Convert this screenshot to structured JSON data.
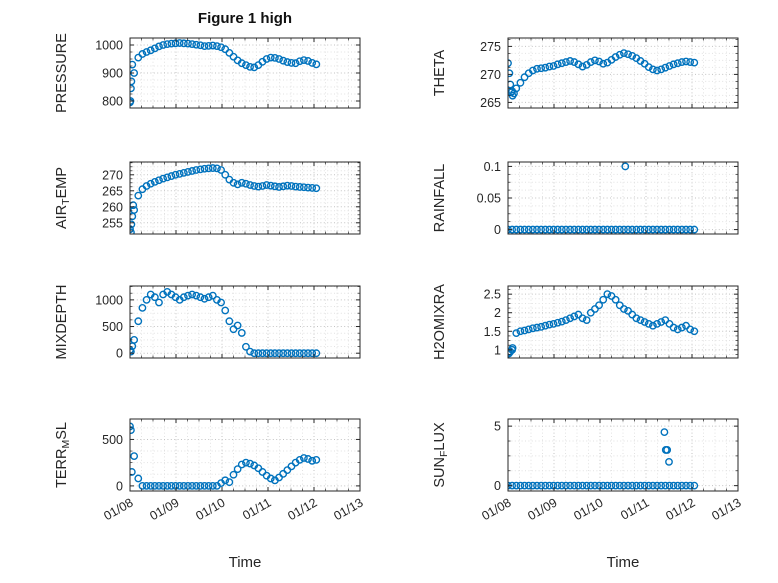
{
  "chart_data": {
    "type": "scatter",
    "title": "Figure 1 high",
    "xlabel": "Time",
    "marker": "open-circle",
    "marker_color": "#0072BD",
    "grid": "on-dotted-minor",
    "xlim": [
      8,
      13
    ],
    "xticks": [
      8,
      9,
      10,
      11,
      12,
      13
    ],
    "xtick_labels": [
      "01/08",
      "01/09",
      "01/10",
      "01/11",
      "01/12",
      "01/13"
    ],
    "x": [
      8.0,
      8.09,
      8.18,
      8.27,
      8.36,
      8.45,
      8.54,
      8.63,
      8.72,
      8.81,
      8.9,
      8.99,
      9.08,
      9.17,
      9.26,
      9.35,
      9.44,
      9.53,
      9.62,
      9.71,
      9.8,
      9.89,
      9.98,
      10.07,
      10.16,
      10.25,
      10.34,
      10.43,
      10.52,
      10.61,
      10.7,
      10.79,
      10.88,
      10.97,
      11.06,
      11.15,
      11.24,
      11.33,
      11.42,
      11.51,
      11.6,
      11.69,
      11.78,
      11.87,
      11.96,
      12.05
    ],
    "panels": [
      {
        "name": "PRESSURE",
        "label_parts": [
          {
            "t": "PRESSURE",
            "sub": false
          }
        ],
        "ylim": [
          775,
          1025
        ],
        "yticks": [
          800,
          900,
          1000
        ],
        "y": [
          795,
          900,
          955,
          968,
          975,
          981,
          988,
          995,
          1000,
          1003,
          1005,
          1006,
          1007,
          1006,
          1005,
          1003,
          1001,
          999,
          996,
          997,
          998,
          996,
          992,
          985,
          972,
          958,
          945,
          935,
          928,
          922,
          920,
          928,
          940,
          950,
          955,
          954,
          950,
          944,
          939,
          936,
          935,
          942,
          946,
          943,
          936,
          931
        ],
        "extra": [
          [
            8.01,
            800
          ],
          [
            8.02,
            845
          ],
          [
            8.03,
            870
          ],
          [
            8.05,
            930
          ]
        ]
      },
      {
        "name": "THETA",
        "label_parts": [
          {
            "t": "THETA",
            "sub": false
          }
        ],
        "ylim": [
          264,
          276.5
        ],
        "yticks": [
          265,
          270,
          275
        ],
        "y": [
          272,
          267,
          267.5,
          268.5,
          269.5,
          270.2,
          270.7,
          271.0,
          271.1,
          271.2,
          271.4,
          271.5,
          271.8,
          272.0,
          272.2,
          272.4,
          272.2,
          271.8,
          271.4,
          271.7,
          272.2,
          272.5,
          272.3,
          271.9,
          272.1,
          272.6,
          273.1,
          273.5,
          273.8,
          273.6,
          273.3,
          272.9,
          272.4,
          271.9,
          271.3,
          270.9,
          270.7,
          270.9,
          271.2,
          271.5,
          271.8,
          272.0,
          272.2,
          272.3,
          272.2,
          272.1
        ],
        "extra": [
          [
            8.03,
            270.2
          ],
          [
            8.05,
            268.2
          ],
          [
            8.07,
            266.8
          ],
          [
            8.1,
            266.2
          ],
          [
            8.13,
            266.6
          ]
        ]
      },
      {
        "name": "AIR_TEMP",
        "label_parts": [
          {
            "t": "AIR",
            "sub": false
          },
          {
            "t": "T",
            "sub": true
          },
          {
            "t": "EMP",
            "sub": false
          }
        ],
        "ylim": [
          251.5,
          274
        ],
        "yticks": [
          255,
          260,
          265,
          270
        ],
        "y": [
          253,
          259,
          263.5,
          265.5,
          266.5,
          267.2,
          267.8,
          268.3,
          268.8,
          269.2,
          269.6,
          270.0,
          270.3,
          270.6,
          270.9,
          271.2,
          271.5,
          271.7,
          271.9,
          272.0,
          272.1,
          272.0,
          271.5,
          270.0,
          268.5,
          267.5,
          267.0,
          267.5,
          267.2,
          266.8,
          266.5,
          266.3,
          266.5,
          266.8,
          266.6,
          266.4,
          266.2,
          266.4,
          266.6,
          266.5,
          266.3,
          266.2,
          266.1,
          266.0,
          265.9,
          265.8
        ],
        "extra": [
          [
            8.02,
            252
          ],
          [
            8.03,
            254.5
          ],
          [
            8.05,
            257
          ],
          [
            8.07,
            260.5
          ]
        ]
      },
      {
        "name": "RAINFALL",
        "label_parts": [
          {
            "t": "RAINFALL",
            "sub": false
          }
        ],
        "ylim": [
          -0.007,
          0.107
        ],
        "yticks": [
          0,
          0.05,
          0.1
        ],
        "y": [
          0,
          0,
          0,
          0,
          0,
          0,
          0,
          0,
          0,
          0,
          0,
          0,
          0,
          0,
          0,
          0,
          0,
          0,
          0,
          0,
          0,
          0,
          0,
          0,
          0,
          0,
          0,
          0,
          0,
          0,
          0,
          0,
          0,
          0,
          0,
          0,
          0,
          0,
          0,
          0,
          0,
          0,
          0,
          0,
          0,
          0
        ],
        "extra": [
          [
            10.55,
            0.1
          ]
        ]
      },
      {
        "name": "MIXDEPTH",
        "label_parts": [
          {
            "t": "MIXDEPTH",
            "sub": false
          }
        ],
        "ylim": [
          -90,
          1260
        ],
        "yticks": [
          0,
          500,
          1000
        ],
        "y": [
          60,
          250,
          600,
          850,
          1000,
          1100,
          1050,
          950,
          1100,
          1150,
          1100,
          1050,
          1000,
          1050,
          1080,
          1100,
          1080,
          1050,
          1020,
          1050,
          1080,
          1000,
          950,
          800,
          600,
          450,
          520,
          380,
          120,
          30,
          0,
          0,
          0,
          0,
          0,
          0,
          0,
          0,
          0,
          0,
          0,
          0,
          0,
          0,
          0,
          0
        ],
        "extra": [
          [
            8.02,
            30
          ],
          [
            8.05,
            130
          ]
        ]
      },
      {
        "name": "H2OMIXRA",
        "label_parts": [
          {
            "t": "H2OMIXRA",
            "sub": false
          }
        ],
        "ylim": [
          0.78,
          2.72
        ],
        "yticks": [
          1,
          1.5,
          2,
          2.5
        ],
        "y": [
          0.92,
          1.0,
          1.45,
          1.5,
          1.52,
          1.55,
          1.58,
          1.6,
          1.62,
          1.65,
          1.68,
          1.7,
          1.73,
          1.76,
          1.8,
          1.85,
          1.9,
          1.95,
          1.85,
          1.8,
          2.0,
          2.1,
          2.2,
          2.35,
          2.5,
          2.45,
          2.35,
          2.2,
          2.1,
          2.05,
          1.95,
          1.85,
          1.8,
          1.75,
          1.7,
          1.65,
          1.7,
          1.75,
          1.8,
          1.7,
          1.6,
          1.55,
          1.6,
          1.65,
          1.55,
          1.5
        ],
        "extra": [
          [
            8.02,
            0.9
          ],
          [
            8.05,
            0.95
          ],
          [
            8.1,
            1.05
          ]
        ]
      },
      {
        "name": "TERR_MSL",
        "label_parts": [
          {
            "t": "TERR",
            "sub": false
          },
          {
            "t": "M",
            "sub": true
          },
          {
            "t": "SL",
            "sub": false
          }
        ],
        "ylim": [
          -55,
          720
        ],
        "yticks": [
          0,
          500
        ],
        "y": [
          640,
          320,
          80,
          0,
          0,
          0,
          0,
          0,
          0,
          0,
          0,
          0,
          0,
          0,
          0,
          0,
          0,
          0,
          0,
          0,
          0,
          0,
          30,
          60,
          40,
          120,
          180,
          230,
          250,
          240,
          220,
          190,
          150,
          110,
          80,
          60,
          90,
          130,
          170,
          210,
          250,
          280,
          300,
          290,
          270,
          280
        ],
        "extra": [
          [
            8.02,
            600
          ],
          [
            8.04,
            150
          ]
        ]
      },
      {
        "name": "SUN_FLUX",
        "label_parts": [
          {
            "t": "SUN",
            "sub": false
          },
          {
            "t": "F",
            "sub": true
          },
          {
            "t": "LUX",
            "sub": false
          }
        ],
        "ylim": [
          -0.45,
          5.6
        ],
        "yticks": [
          0,
          5
        ],
        "y": [
          0,
          0,
          0,
          0,
          0,
          0,
          0,
          0,
          0,
          0,
          0,
          0,
          0,
          0,
          0,
          0,
          0,
          0,
          0,
          0,
          0,
          0,
          0,
          0,
          0,
          0,
          0,
          0,
          0,
          0,
          0,
          0,
          0,
          0,
          0,
          0,
          0,
          0,
          0,
          0,
          0,
          0,
          0,
          0,
          0,
          0
        ],
        "extra": [
          [
            11.4,
            4.5
          ],
          [
            11.43,
            3.0
          ],
          [
            11.46,
            3.0
          ],
          [
            11.5,
            2.0
          ]
        ]
      }
    ]
  }
}
